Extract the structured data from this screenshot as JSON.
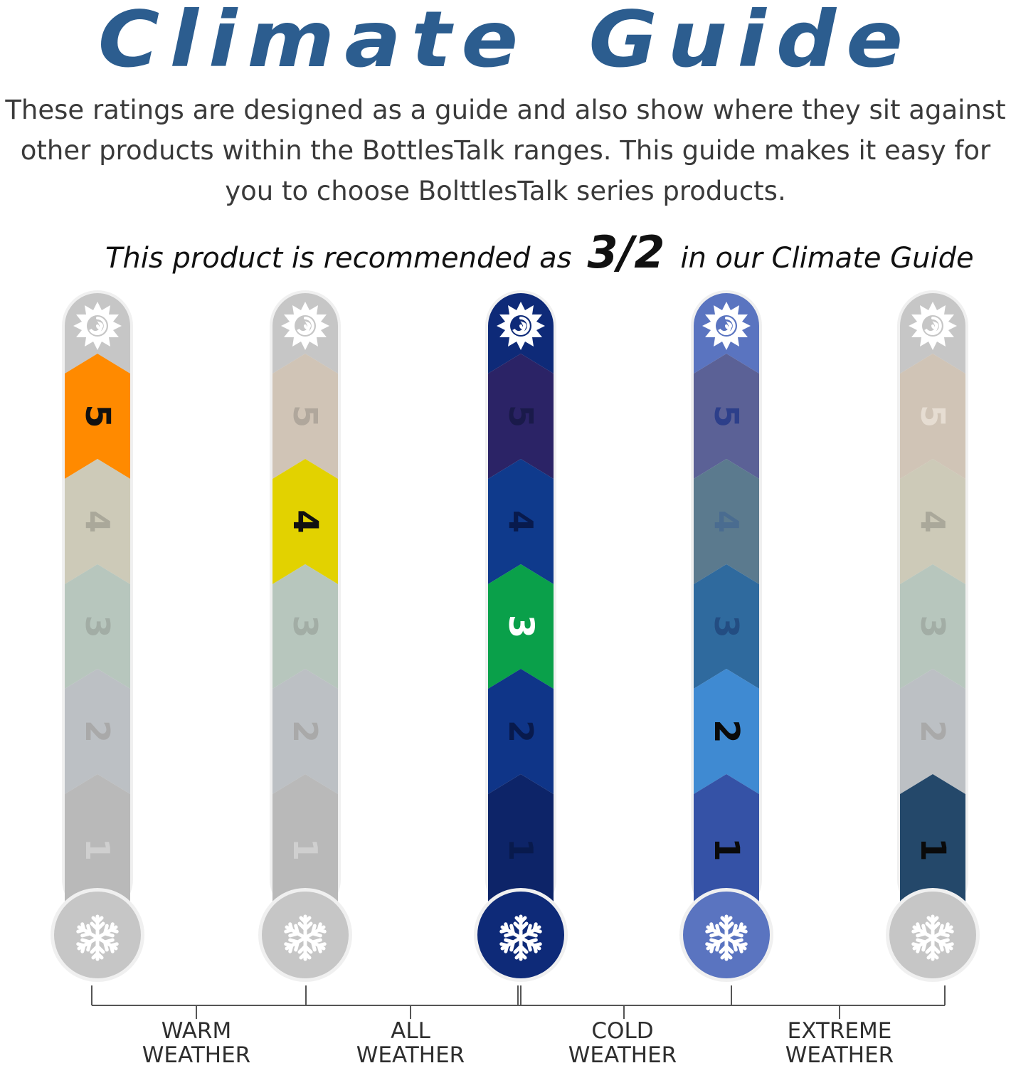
{
  "title": "Climate Guide",
  "description": {
    "line1": "These ratings are designed as a guide and also show where they sit against",
    "line2": "other products within the BottlesTalk ranges. This guide makes it easy for",
    "line3": "you to choose BolttlesTalk series products."
  },
  "recommendation": {
    "prefix": "This product is recommended as",
    "rating": "3/2",
    "suffix": "in our Climate Guide"
  },
  "gauges": [
    {
      "name": "gauge-1",
      "highlight": [
        5
      ],
      "cap_color": "#c6c6c6",
      "highlight_colors": {
        "5": "#ff8a00"
      },
      "segment_colors": {
        "1": "#b9b9b9",
        "2": "#bcc0c4",
        "3": "#b7c6bd",
        "4": "#cdcab8",
        "5": "#ff8a00"
      },
      "label_colors": {
        "1": "#cfcfcf",
        "2": "#a9a9a9",
        "3": "#a2ada5",
        "4": "#aaa89a",
        "5": "#111111"
      }
    },
    {
      "name": "gauge-2",
      "highlight": [
        4
      ],
      "cap_color": "#c6c6c6",
      "segment_colors": {
        "1": "#b9b9b9",
        "2": "#bcc0c4",
        "3": "#b7c6bd",
        "4": "#e2d200",
        "5": "#d0c4b6"
      },
      "label_colors": {
        "1": "#cfcfcf",
        "2": "#a9a9a9",
        "3": "#a2ada5",
        "4": "#111111",
        "5": "#b0a79c"
      }
    },
    {
      "name": "gauge-3",
      "highlight": [
        3
      ],
      "cap_color": "#0e2a78",
      "segment_colors": {
        "1": "#0d2468",
        "2": "#0f3588",
        "3": "#0aa04a",
        "4": "#0f3a8c",
        "5": "#2b2366"
      },
      "label_colors": {
        "1": "#081a4d",
        "2": "#081a4d",
        "3": "#ffffff",
        "4": "#081a4d",
        "5": "#1a1a4a"
      }
    },
    {
      "name": "gauge-4",
      "highlight": [
        2,
        1
      ],
      "cap_color": "#5a74c0",
      "segment_colors": {
        "1": "#3552a6",
        "2": "#3f8ad2",
        "3": "#2f6a9e",
        "4": "#5b7a8e",
        "5": "#5b6196"
      },
      "label_colors": {
        "1": "#0a0a0a",
        "2": "#0a0a0a",
        "3": "#234d82",
        "4": "#4a6c90",
        "5": "#2d3f8a"
      }
    },
    {
      "name": "gauge-5",
      "highlight": [
        1
      ],
      "cap_color": "#c6c6c6",
      "segment_colors": {
        "1": "#24486a",
        "2": "#bcc0c4",
        "3": "#b7c6bd",
        "4": "#cdcab8",
        "5": "#d0c4b6"
      },
      "label_colors": {
        "1": "#0a0a0a",
        "2": "#a9a9a9",
        "3": "#a2ada5",
        "4": "#aaa89a",
        "5": "#e6ddd2"
      }
    }
  ],
  "categories": [
    {
      "line1": "WARM",
      "line2": "WEATHER"
    },
    {
      "line1": "ALL",
      "line2": "WEATHER"
    },
    {
      "line1": "COLD",
      "line2": "WEATHER"
    },
    {
      "line1": "EXTREME",
      "line2": "WEATHER"
    }
  ],
  "icons": {
    "top": "sun-icon",
    "bottom": "snowflake-icon"
  },
  "colors": {
    "title": "#2c5d8f",
    "text": "#3a3a3a"
  }
}
